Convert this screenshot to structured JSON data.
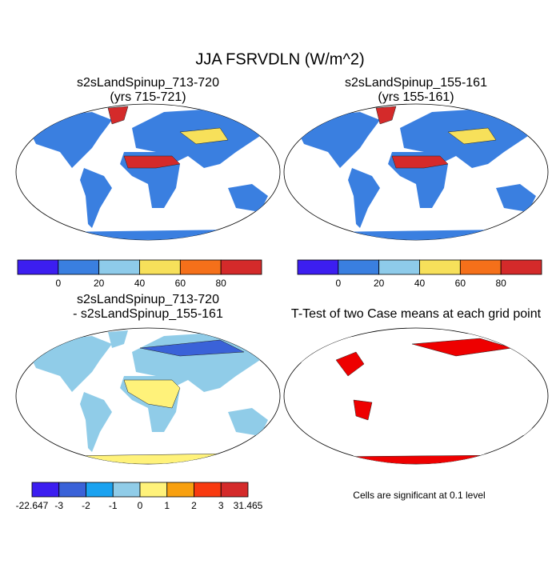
{
  "title": "JJA FSRVDLN (W/m^2)",
  "panels": [
    {
      "title": [
        "s2sLandSpinup_713-720",
        "(yrs 715-721)"
      ]
    },
    {
      "title": [
        "s2sLandSpinup_155-161",
        "(yrs 155-161)"
      ]
    },
    {
      "title": [
        "s2sLandSpinup_713-720",
        "- s2sLandSpinup_155-161"
      ]
    },
    {
      "title": [
        "T-Test of two Case means at each grid point"
      ]
    }
  ],
  "colorbars": [
    {
      "labels": [
        0,
        20,
        40,
        60,
        80
      ],
      "colors": [
        "#3c1ef0",
        "#3a7fe0",
        "#8ecbea",
        "#f7e05a",
        "#f5701a",
        "#d42a2a"
      ]
    },
    {
      "labels": [
        0,
        20,
        40,
        60,
        80
      ],
      "colors": [
        "#3c1ef0",
        "#3a7fe0",
        "#8ecbea",
        "#f7e05a",
        "#f5701a",
        "#d42a2a"
      ]
    },
    {
      "labels": [
        -22.647,
        -3,
        -2,
        -1,
        0,
        1,
        2,
        3,
        31.465
      ],
      "colors": [
        "#3c1ef0",
        "#3a62d8",
        "#1aa2f0",
        "#90cce8",
        "#fff27a",
        "#f8a010",
        "#f83a10",
        "#d42a2a"
      ]
    }
  ],
  "note": "Cells are significant at 0.1 level"
}
